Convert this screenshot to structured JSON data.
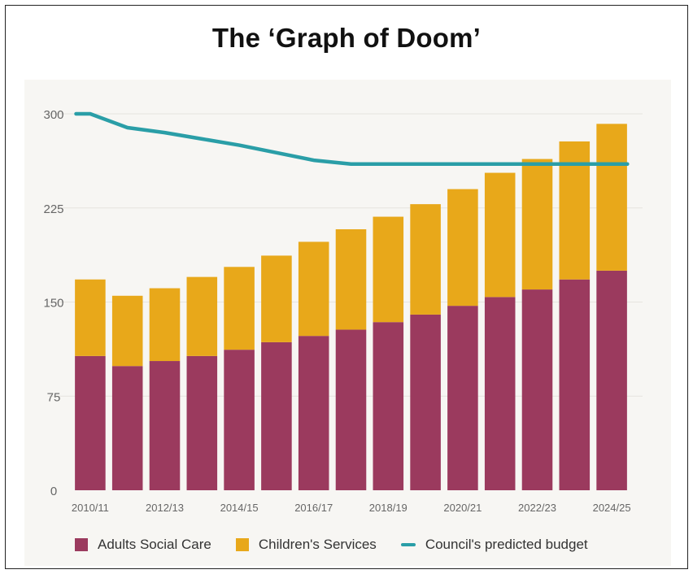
{
  "title": "The ‘Graph of Doom’",
  "colors": {
    "adults": "#9b3a5e",
    "children": "#e8a81a",
    "budget": "#2a9ea7",
    "grid": "#e6e4df",
    "axis_text": "#666666"
  },
  "chart_data": {
    "type": "bar",
    "stacked": true,
    "categories": [
      "2010/11",
      "2011/12",
      "2012/13",
      "2013/14",
      "2014/15",
      "2015/16",
      "2016/17",
      "2017/18",
      "2018/19",
      "2019/20",
      "2020/21",
      "2021/22",
      "2022/23",
      "2023/24",
      "2024/25"
    ],
    "x_tick_labels": [
      "2010/11",
      "",
      "2012/13",
      "",
      "2014/15",
      "",
      "2016/17",
      "",
      "2018/19",
      "",
      "2020/21",
      "",
      "2022/23",
      "",
      "2024/25"
    ],
    "series": [
      {
        "name": "Adults Social Care",
        "values": [
          107,
          99,
          103,
          107,
          112,
          118,
          123,
          128,
          134,
          140,
          147,
          154,
          160,
          168,
          175
        ]
      },
      {
        "name": "Children's Services",
        "values": [
          61,
          56,
          58,
          63,
          66,
          69,
          75,
          80,
          84,
          88,
          93,
          99,
          104,
          110,
          117
        ]
      }
    ],
    "line_series": {
      "name": "Council's predicted budget",
      "values": [
        300,
        289,
        285,
        280,
        275,
        269,
        263,
        260,
        260,
        260,
        260,
        260,
        260,
        260,
        260
      ]
    },
    "ylim": [
      0,
      300
    ],
    "y_ticks": [
      0,
      75,
      150,
      225,
      300
    ],
    "grid": true,
    "legend": "bottom"
  }
}
